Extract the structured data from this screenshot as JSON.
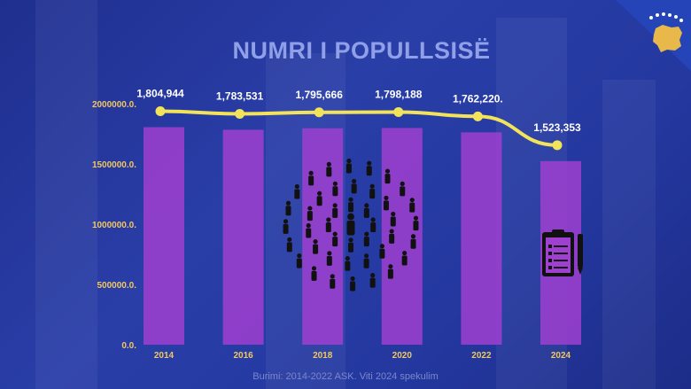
{
  "title": "NUMRI I POPULLSISË",
  "source": "Burimi: 2014-2022 ASK. Viti 2024 spekulim",
  "colors": {
    "bar": "#a040d0",
    "line": "#f3e35a",
    "axis_text": "#f0c860",
    "label_text": "#ffffff",
    "icon": "#111111"
  },
  "icons": [
    "people-crowd-icon",
    "clipboard-pen-icon",
    "kosovo-flag-icon"
  ],
  "chart_data": {
    "type": "bar",
    "categories": [
      "2014",
      "2016",
      "2018",
      "2020",
      "2022",
      "2024"
    ],
    "values": [
      1804944,
      1783531,
      1795666,
      1798188,
      1762220,
      1523353
    ],
    "point_labels": [
      "1,804,944",
      "1,783,531",
      "1,795,666",
      "1,798,188",
      "1,762,220.",
      "1,523,353"
    ],
    "ytick_values": [
      0,
      500000,
      1000000,
      1500000,
      2000000
    ],
    "ytick_labels": [
      "0.0.",
      "500000.0.",
      "1000000.0.",
      "1500000.0.",
      "2000000.0."
    ],
    "ylim": [
      0,
      2000000
    ],
    "line_overlay": true,
    "title": "NUMRI I POPULLSISË",
    "xlabel": "",
    "ylabel": "",
    "grid": false,
    "legend": "none"
  }
}
